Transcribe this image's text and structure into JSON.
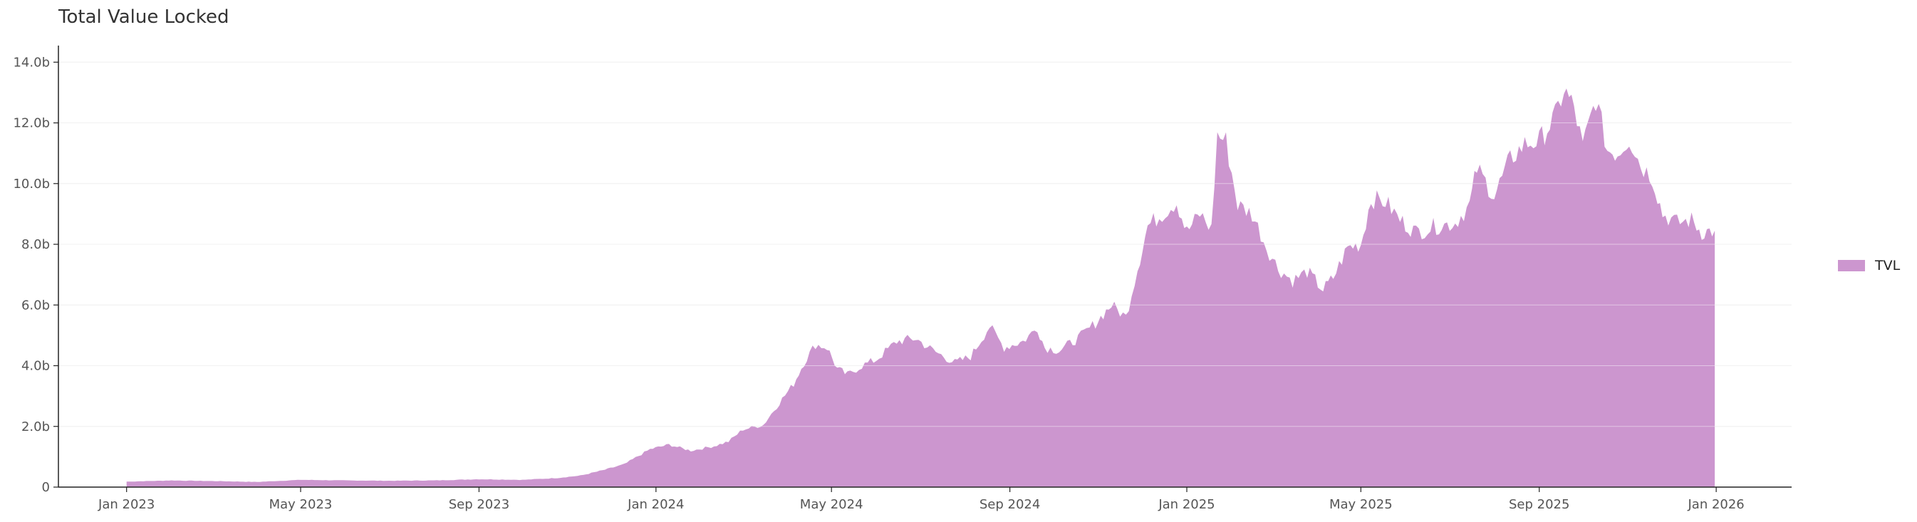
{
  "title": "Total Value Locked",
  "colors": {
    "area": "#cc96cf",
    "axis": "#222222",
    "grid": "#e6e6e6",
    "tick_text": "#555555"
  },
  "legend": {
    "label": "TVL",
    "position": "right"
  },
  "chart_data": {
    "type": "area",
    "title": "Total Value Locked",
    "xlabel": "",
    "ylabel": "",
    "x_axis": {
      "type": "date",
      "range": [
        "2022-11-15",
        "2026-02-22"
      ],
      "ticks": [
        {
          "date": "2023-01-01",
          "label": "Jan 2023"
        },
        {
          "date": "2023-05-01",
          "label": "May 2023"
        },
        {
          "date": "2023-09-01",
          "label": "Sep 2023"
        },
        {
          "date": "2024-01-01",
          "label": "Jan 2024"
        },
        {
          "date": "2024-05-01",
          "label": "May 2024"
        },
        {
          "date": "2024-09-01",
          "label": "Sep 2024"
        },
        {
          "date": "2025-01-01",
          "label": "Jan 2025"
        },
        {
          "date": "2025-05-01",
          "label": "May 2025"
        },
        {
          "date": "2025-09-01",
          "label": "Sep 2025"
        },
        {
          "date": "2026-01-01",
          "label": "Jan 2026"
        }
      ]
    },
    "y_axis": {
      "range": [
        0,
        14.5
      ],
      "unit": "b",
      "ticks": [
        {
          "value": 0,
          "label": "0"
        },
        {
          "value": 2,
          "label": "2.0b"
        },
        {
          "value": 4,
          "label": "4.0b"
        },
        {
          "value": 6,
          "label": "6.0b"
        },
        {
          "value": 8,
          "label": "8.0b"
        },
        {
          "value": 10,
          "label": "10.0b"
        },
        {
          "value": 12,
          "label": "12.0b"
        },
        {
          "value": 14,
          "label": "14.0b"
        }
      ]
    },
    "grid": true,
    "series": [
      {
        "name": "TVL",
        "points": [
          [
            "2023-01-01",
            0.18
          ],
          [
            "2023-02-01",
            0.22
          ],
          [
            "2023-03-01",
            0.2
          ],
          [
            "2023-04-01",
            0.17
          ],
          [
            "2023-05-01",
            0.24
          ],
          [
            "2023-06-01",
            0.22
          ],
          [
            "2023-07-01",
            0.21
          ],
          [
            "2023-08-01",
            0.22
          ],
          [
            "2023-09-01",
            0.26
          ],
          [
            "2023-10-01",
            0.24
          ],
          [
            "2023-10-25",
            0.3
          ],
          [
            "2023-11-10",
            0.38
          ],
          [
            "2023-11-25",
            0.55
          ],
          [
            "2023-12-10",
            0.75
          ],
          [
            "2023-12-28",
            1.25
          ],
          [
            "2024-01-10",
            1.4
          ],
          [
            "2024-01-25",
            1.2
          ],
          [
            "2024-02-10",
            1.35
          ],
          [
            "2024-02-20",
            1.5
          ],
          [
            "2024-03-01",
            1.9
          ],
          [
            "2024-03-15",
            2.05
          ],
          [
            "2024-03-28",
            2.9
          ],
          [
            "2024-04-05",
            3.4
          ],
          [
            "2024-04-12",
            4.1
          ],
          [
            "2024-04-20",
            4.7
          ],
          [
            "2024-04-28",
            4.6
          ],
          [
            "2024-05-05",
            3.9
          ],
          [
            "2024-05-12",
            3.7
          ],
          [
            "2024-05-22",
            4.0
          ],
          [
            "2024-06-01",
            4.2
          ],
          [
            "2024-06-15",
            4.8
          ],
          [
            "2024-06-28",
            4.9
          ],
          [
            "2024-07-10",
            4.5
          ],
          [
            "2024-07-25",
            4.1
          ],
          [
            "2024-08-05",
            4.3
          ],
          [
            "2024-08-18",
            5.3
          ],
          [
            "2024-08-28",
            4.6
          ],
          [
            "2024-09-10",
            4.8
          ],
          [
            "2024-09-20",
            5.25
          ],
          [
            "2024-09-25",
            4.6
          ],
          [
            "2024-10-05",
            4.5
          ],
          [
            "2024-10-18",
            4.9
          ],
          [
            "2024-10-30",
            5.4
          ],
          [
            "2024-11-10",
            6.0
          ],
          [
            "2024-11-20",
            5.6
          ],
          [
            "2024-11-28",
            7.2
          ],
          [
            "2024-12-05",
            8.6
          ],
          [
            "2024-12-15",
            9.0
          ],
          [
            "2024-12-25",
            9.4
          ],
          [
            "2025-01-01",
            8.4
          ],
          [
            "2025-01-10",
            9.0
          ],
          [
            "2025-01-18",
            8.5
          ],
          [
            "2025-01-22",
            11.6
          ],
          [
            "2025-01-28",
            11.4
          ],
          [
            "2025-02-05",
            9.3
          ],
          [
            "2025-02-15",
            9.0
          ],
          [
            "2025-02-25",
            7.9
          ],
          [
            "2025-03-05",
            7.2
          ],
          [
            "2025-03-15",
            6.8
          ],
          [
            "2025-03-25",
            7.1
          ],
          [
            "2025-04-05",
            6.5
          ],
          [
            "2025-04-12",
            6.9
          ],
          [
            "2025-04-22",
            7.9
          ],
          [
            "2025-05-01",
            8.0
          ],
          [
            "2025-05-08",
            9.5
          ],
          [
            "2025-05-18",
            9.4
          ],
          [
            "2025-05-28",
            8.8
          ],
          [
            "2025-06-08",
            8.4
          ],
          [
            "2025-06-22",
            8.6
          ],
          [
            "2025-07-05",
            8.7
          ],
          [
            "2025-07-15",
            9.3
          ],
          [
            "2025-07-20",
            10.5
          ],
          [
            "2025-08-01",
            9.6
          ],
          [
            "2025-08-12",
            10.8
          ],
          [
            "2025-08-22",
            11.3
          ],
          [
            "2025-09-01",
            11.4
          ],
          [
            "2025-09-12",
            12.2
          ],
          [
            "2025-09-18",
            13.1
          ],
          [
            "2025-09-25",
            12.5
          ],
          [
            "2025-10-01",
            11.2
          ],
          [
            "2025-10-10",
            12.8
          ],
          [
            "2025-10-18",
            11.1
          ],
          [
            "2025-10-25",
            11.0
          ],
          [
            "2025-11-02",
            11.5
          ],
          [
            "2025-11-10",
            10.6
          ],
          [
            "2025-11-18",
            10.2
          ],
          [
            "2025-11-25",
            9.0
          ],
          [
            "2025-12-05",
            8.7
          ],
          [
            "2025-12-15",
            8.8
          ],
          [
            "2025-12-22",
            8.4
          ],
          [
            "2025-12-31",
            8.45
          ]
        ]
      }
    ]
  }
}
